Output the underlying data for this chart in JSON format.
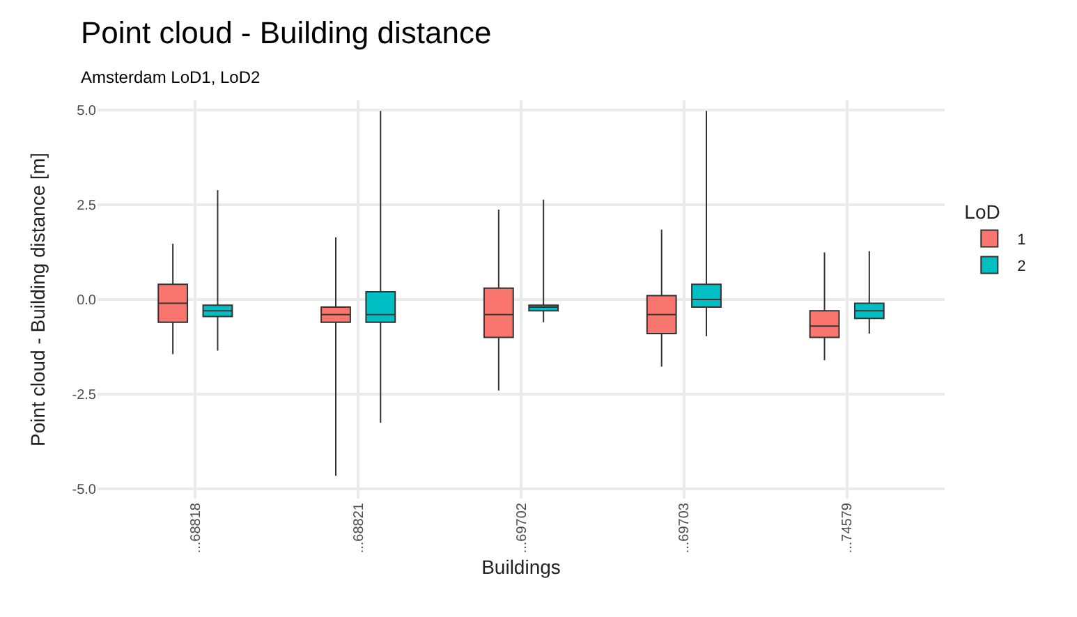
{
  "chart_data": {
    "type": "box",
    "title": "Point cloud - Building distance",
    "subtitle": "Amsterdam LoD1, LoD2",
    "xlabel": "Buildings",
    "ylabel": "Point cloud - Building distance [m]",
    "legend_title": "LoD",
    "categories": [
      "...68818",
      "...68821",
      "...69702",
      "...69703",
      "...74579"
    ],
    "series": [
      {
        "name": "1",
        "color": "#f8766d",
        "boxes": [
          {
            "low": -1.44,
            "q1": -0.6,
            "median": -0.1,
            "q3": 0.4,
            "high": 1.47
          },
          {
            "low": -4.65,
            "q1": -0.6,
            "median": -0.4,
            "q3": -0.2,
            "high": 1.64
          },
          {
            "low": -2.4,
            "q1": -1.0,
            "median": -0.4,
            "q3": 0.3,
            "high": 2.37
          },
          {
            "low": -1.77,
            "q1": -0.9,
            "median": -0.4,
            "q3": 0.1,
            "high": 1.84
          },
          {
            "low": -1.6,
            "q1": -1.0,
            "median": -0.7,
            "q3": -0.3,
            "high": 1.24
          }
        ]
      },
      {
        "name": "2",
        "color": "#00bfc4",
        "boxes": [
          {
            "low": -1.35,
            "q1": -0.45,
            "median": -0.3,
            "q3": -0.15,
            "high": 2.88
          },
          {
            "low": -3.25,
            "q1": -0.6,
            "median": -0.4,
            "q3": 0.2,
            "high": 4.97
          },
          {
            "low": -0.6,
            "q1": -0.3,
            "median": -0.2,
            "q3": -0.15,
            "high": 2.63
          },
          {
            "low": -0.97,
            "q1": -0.2,
            "median": 0.0,
            "q3": 0.4,
            "high": 4.97
          },
          {
            "low": -0.9,
            "q1": -0.5,
            "median": -0.3,
            "q3": -0.1,
            "high": 1.27
          }
        ]
      }
    ],
    "ylim": [
      -5.25,
      5.25
    ],
    "yticks": [
      {
        "value": -5,
        "label": "-5.0"
      },
      {
        "value": -2.5,
        "label": "-2.5"
      },
      {
        "value": 0,
        "label": "0.0"
      },
      {
        "value": 2.5,
        "label": "2.5"
      },
      {
        "value": 5,
        "label": "5.0"
      }
    ],
    "grid": true,
    "legend": "right"
  }
}
